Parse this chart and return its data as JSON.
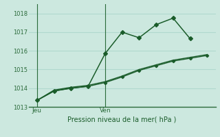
{
  "background_color": "#cce8df",
  "grid_color": "#b0d8ce",
  "line_color": "#1a5c2a",
  "axis_color": "#2a6a3a",
  "title": "Pression niveau de la mer( hPa )",
  "ylim": [
    1013,
    1018.5
  ],
  "yticks": [
    1013,
    1014,
    1015,
    1016,
    1017,
    1018
  ],
  "day_labels": [
    "Jeu",
    "Ven"
  ],
  "day_positions": [
    0.5,
    4.5
  ],
  "xlim": [
    0,
    11
  ],
  "x_main": [
    0.5,
    1.5,
    2.5,
    3.5,
    4.5,
    5.5,
    6.5,
    7.5,
    8.5,
    9.5
  ],
  "y_main": [
    1013.35,
    1013.85,
    1014.0,
    1014.1,
    1015.85,
    1017.0,
    1016.7,
    1017.4,
    1017.75,
    1016.65
  ],
  "x_line2": [
    0.5,
    1.5,
    2.5,
    3.5,
    4.5,
    5.5,
    6.5,
    7.5,
    8.5,
    9.5,
    10.5
  ],
  "y_line2": [
    1013.35,
    1013.85,
    1014.0,
    1014.1,
    1014.3,
    1014.6,
    1014.95,
    1015.2,
    1015.45,
    1015.6,
    1015.75
  ],
  "x_line3": [
    0.5,
    1.5,
    2.5,
    3.5,
    4.5,
    5.5,
    6.5,
    7.5,
    8.5,
    9.5,
    10.5
  ],
  "y_line3": [
    1013.35,
    1013.9,
    1014.05,
    1014.15,
    1014.35,
    1014.65,
    1015.0,
    1015.25,
    1015.5,
    1015.65,
    1015.8
  ]
}
